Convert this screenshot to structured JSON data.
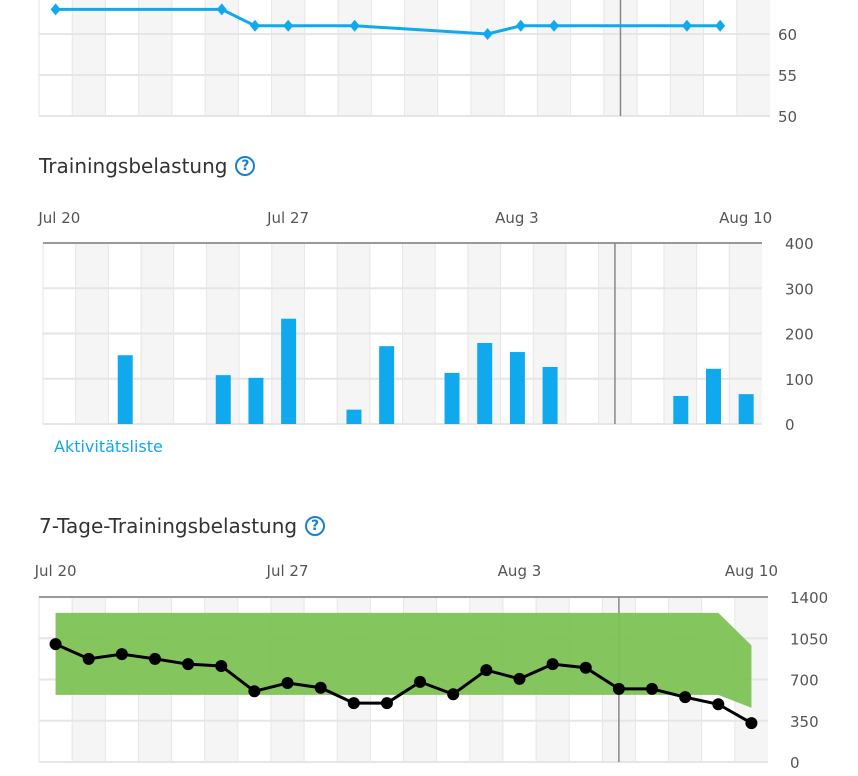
{
  "sections": {
    "training_load_title": "Trainingsbelastung",
    "activity_list_link": "Aktivitätsliste",
    "seven_day_title": "7-Tage-Trainingsbelastung",
    "help_glyph": "?"
  },
  "colors": {
    "blue": "#11a9ed",
    "green": "#7dc254",
    "stripe": "#f5f5f5",
    "grid": "#e6e6e6",
    "today": "#888888"
  },
  "chart_data": [
    {
      "type": "line",
      "title": "",
      "days": 22,
      "today_index": 17,
      "x_index": [
        0,
        5,
        6,
        7,
        9,
        13,
        14,
        15,
        19,
        20
      ],
      "values": [
        63,
        63,
        61,
        61,
        61,
        60,
        61,
        61,
        61,
        61
      ],
      "yticks": [
        60,
        55,
        50
      ],
      "ylim": [
        50,
        64
      ]
    },
    {
      "type": "bar",
      "title": "Trainingsbelastung",
      "days": 22,
      "today_index": 17,
      "xtick_labels": [
        {
          "i": 0,
          "label": "Jul 20"
        },
        {
          "i": 7,
          "label": "Jul 27"
        },
        {
          "i": 14,
          "label": "Aug 3"
        },
        {
          "i": 21,
          "label": "Aug 10"
        }
      ],
      "bars": [
        {
          "i": 2,
          "segments": [
            152
          ]
        },
        {
          "i": 5,
          "segments": [
            108
          ]
        },
        {
          "i": 6,
          "segments": [
            102
          ]
        },
        {
          "i": 7,
          "segments": [
            12,
            224
          ]
        },
        {
          "i": 9,
          "segments": [
            22,
            13
          ]
        },
        {
          "i": 10,
          "segments": [
            172
          ]
        },
        {
          "i": 12,
          "segments": [
            113
          ]
        },
        {
          "i": 13,
          "segments": [
            179
          ]
        },
        {
          "i": 14,
          "segments": [
            159
          ]
        },
        {
          "i": 15,
          "segments": [
            126
          ]
        },
        {
          "i": 19,
          "segments": [
            62
          ]
        },
        {
          "i": 20,
          "segments": [
            122
          ]
        },
        {
          "i": 21,
          "segments": [
            66
          ]
        }
      ],
      "yticks": [
        400,
        300,
        200,
        100,
        0
      ],
      "ylim": [
        0,
        400
      ]
    },
    {
      "type": "line",
      "title": "7-Tage-Trainingsbelastung",
      "days": 22,
      "today_index": 17,
      "xtick_labels": [
        {
          "i": 0,
          "label": "Jul 20"
        },
        {
          "i": 7,
          "label": "Jul 27"
        },
        {
          "i": 14,
          "label": "Aug 3"
        },
        {
          "i": 21,
          "label": "Aug 10"
        }
      ],
      "values": [
        1000,
        875,
        915,
        875,
        830,
        815,
        600,
        670,
        630,
        500,
        500,
        680,
        575,
        780,
        705,
        830,
        800,
        620,
        620,
        550,
        490,
        330
      ],
      "optimal_range": {
        "upper": [
          1265,
          1265,
          1265,
          1265,
          1265,
          1265,
          1265,
          1265,
          1265,
          1265,
          1265,
          1265,
          1265,
          1265,
          1265,
          1265,
          1265,
          1265,
          1265,
          1265,
          1265,
          990
        ],
        "lower": [
          570,
          570,
          570,
          570,
          570,
          570,
          570,
          570,
          570,
          570,
          570,
          570,
          570,
          570,
          570,
          570,
          570,
          570,
          570,
          570,
          570,
          460
        ]
      },
      "yticks": [
        1400,
        1050,
        700,
        350,
        0
      ],
      "ylim": [
        0,
        1400
      ]
    }
  ]
}
